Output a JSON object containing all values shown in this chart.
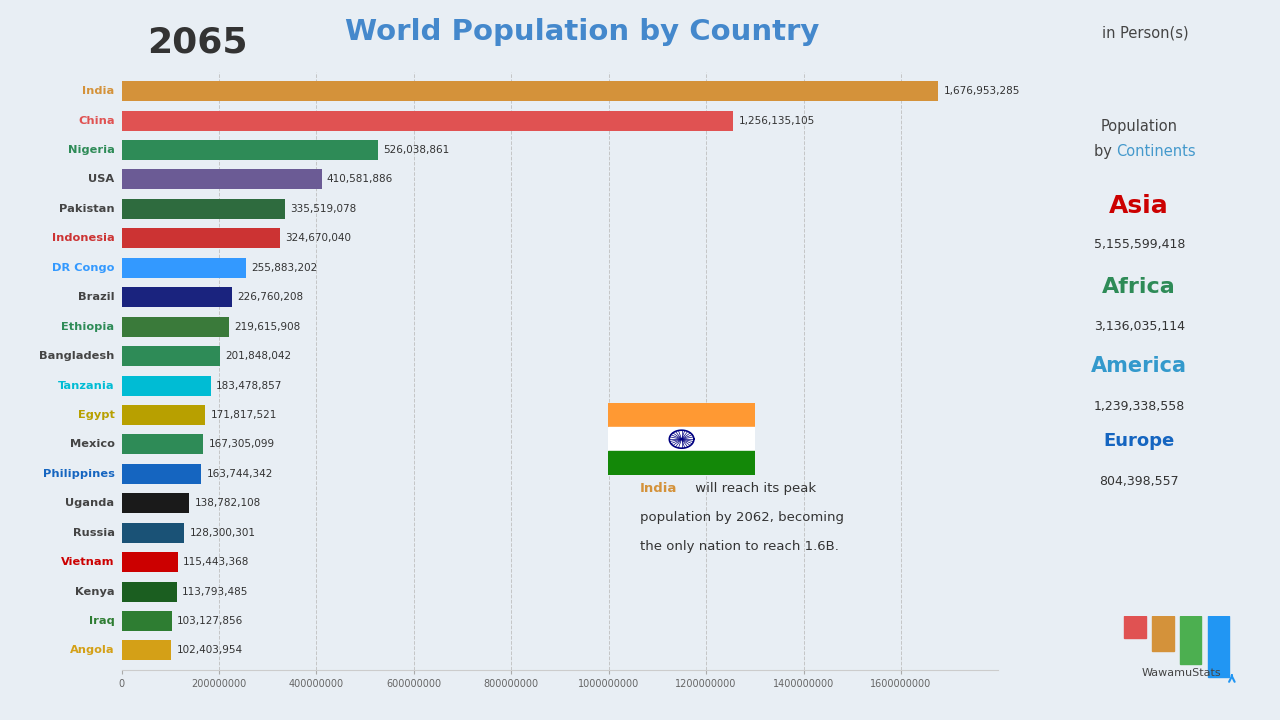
{
  "year": "2065",
  "title": "World Population by Country",
  "subtitle": "in Person(s)",
  "countries": [
    "India",
    "China",
    "Nigeria",
    "USA",
    "Pakistan",
    "Indonesia",
    "DR Congo",
    "Brazil",
    "Ethiopia",
    "Bangladesh",
    "Tanzania",
    "Egypt",
    "Mexico",
    "Philippines",
    "Uganda",
    "Russia",
    "Vietnam",
    "Kenya",
    "Iraq",
    "Angola"
  ],
  "values": [
    1676953285,
    1256135105,
    526038861,
    410581886,
    335519078,
    324670040,
    255883202,
    226760208,
    219615908,
    201848042,
    183478857,
    171817521,
    167305099,
    163744342,
    138782108,
    128300301,
    115443368,
    113793485,
    103127856,
    102403954
  ],
  "bar_colors": [
    "#D4923A",
    "#E05252",
    "#2E8B57",
    "#6B5B95",
    "#2E6B3E",
    "#CC3333",
    "#3399FF",
    "#1A237E",
    "#3A7A3A",
    "#2E8B57",
    "#00BCD4",
    "#B8A000",
    "#2E8B57",
    "#1565C0",
    "#1A1A1A",
    "#1A5276",
    "#CC0000",
    "#1B5E20",
    "#2E7D32",
    "#D4A017"
  ],
  "label_colors": [
    "#D4923A",
    "#E05252",
    "#2E8B57",
    "#444444",
    "#444444",
    "#CC3333",
    "#3399FF",
    "#444444",
    "#2E8B57",
    "#444444",
    "#00BCD4",
    "#B8A000",
    "#444444",
    "#1565C0",
    "#444444",
    "#444444",
    "#CC0000",
    "#444444",
    "#2E7D32",
    "#D4A017"
  ],
  "continent_labels": [
    "Asia",
    "Africa",
    "America",
    "Europe"
  ],
  "continent_colors": [
    "#CC0000",
    "#2E8B57",
    "#3399CC",
    "#1565C0"
  ],
  "continent_values": [
    "5,155,599,418",
    "3,136,035,114",
    "1,239,338,558",
    "804,398,557"
  ],
  "bg_color": "#E8EEF4",
  "annotation_india": "India",
  "annotation_rest": " will reach its peak\npopulation by 2062, becoming\nthe only nation to reach 1.6B.",
  "xlim": 1800000000,
  "xticks": [
    0,
    200000000,
    400000000,
    600000000,
    800000000,
    1000000000,
    1200000000,
    1400000000,
    1600000000
  ],
  "xtick_labels": [
    "0",
    "200000000",
    "400000000",
    "600000000",
    "800000000",
    "1000000000",
    "1200000000",
    "1400000000",
    "1600000000"
  ]
}
